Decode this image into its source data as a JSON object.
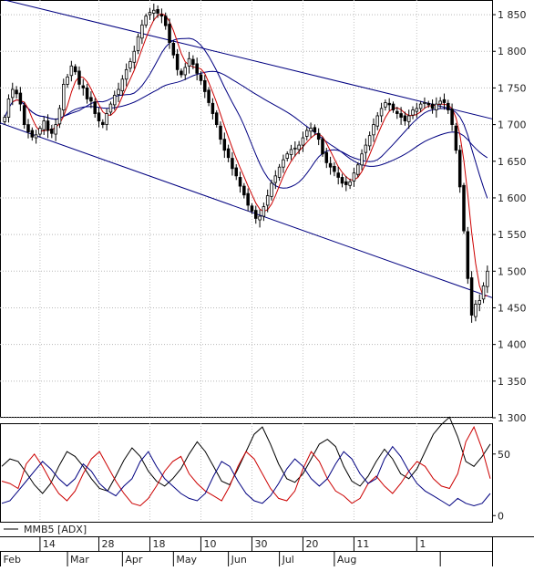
{
  "chart_data": [
    {
      "type": "candlestick",
      "title": "",
      "y_axis": {
        "position": "right",
        "ylim": [
          1300,
          1870
        ],
        "ticks": [
          1300,
          1350,
          1400,
          1450,
          1500,
          1550,
          1600,
          1650,
          1700,
          1750,
          1800,
          1850
        ],
        "tick_labels": [
          "1 300",
          "1 350",
          "1 400",
          "1 450",
          "1 500",
          "1 550",
          "1 600",
          "1 650",
          "1 700",
          "1 750",
          "1 800",
          "1 850"
        ]
      },
      "grid": "dotted",
      "candle_colors": {
        "up": "#ffffff",
        "down": "#000000",
        "outline": "#000000"
      },
      "closes": [
        1710,
        1735,
        1748,
        1742,
        1728,
        1700,
        1690,
        1683,
        1686,
        1695,
        1705,
        1692,
        1688,
        1700,
        1722,
        1755,
        1765,
        1780,
        1772,
        1755,
        1750,
        1735,
        1732,
        1715,
        1705,
        1700,
        1715,
        1728,
        1740,
        1748,
        1762,
        1775,
        1786,
        1800,
        1820,
        1836,
        1848,
        1853,
        1856,
        1852,
        1848,
        1835,
        1812,
        1795,
        1775,
        1768,
        1778,
        1790,
        1782,
        1770,
        1760,
        1745,
        1730,
        1715,
        1700,
        1680,
        1665,
        1655,
        1640,
        1630,
        1616,
        1604,
        1590,
        1582,
        1572,
        1575,
        1588,
        1603,
        1620,
        1630,
        1642,
        1652,
        1660,
        1666,
        1668,
        1672,
        1682,
        1692,
        1695,
        1690,
        1680,
        1660,
        1648,
        1642,
        1636,
        1628,
        1620,
        1618,
        1622,
        1634,
        1645,
        1660,
        1672,
        1685,
        1700,
        1712,
        1722,
        1730,
        1727,
        1720,
        1715,
        1710,
        1705,
        1712,
        1720,
        1722,
        1728,
        1730,
        1727,
        1722,
        1728,
        1732,
        1730,
        1720,
        1700,
        1665,
        1615,
        1555,
        1490,
        1440,
        1455,
        1460,
        1480,
        1500
      ],
      "dates_axis": {
        "day_labels": [
          "14",
          "28",
          "18",
          "10",
          "30",
          "20",
          "11",
          "1"
        ],
        "month_labels": [
          "Feb",
          "Mar",
          "Apr",
          "May",
          "Jun",
          "Jul",
          "Aug"
        ]
      },
      "overlays": {
        "short_ma": {
          "color": "#cc0000",
          "period": 5
        },
        "medium_ma": {
          "color": "#000080",
          "period": 15
        },
        "long_ma": {
          "color": "#000080",
          "period": 40
        },
        "trend_channel_upper": {
          "color": "#000080",
          "x": [
            0,
            121
          ],
          "y": [
            1870,
            1712
          ]
        },
        "trend_channel_lower": {
          "color": "#000080",
          "x": [
            0,
            121
          ],
          "y": [
            1700,
            1470
          ]
        }
      }
    },
    {
      "type": "line",
      "legend": "MMB5 [ADX]",
      "y_axis": {
        "position": "right",
        "ylim": [
          -5,
          75
        ],
        "ticks": [
          0,
          50
        ],
        "tick_labels": [
          "0",
          "50"
        ]
      },
      "series": [
        {
          "color": "#000000",
          "values": [
            40,
            46,
            44,
            35,
            25,
            18,
            26,
            40,
            52,
            48,
            40,
            30,
            22,
            20,
            32,
            45,
            55,
            48,
            36,
            28,
            24,
            30,
            38,
            50,
            60,
            52,
            40,
            28,
            25,
            38,
            52,
            66,
            72,
            58,
            42,
            30,
            27,
            34,
            46,
            58,
            62,
            56,
            40,
            28,
            24,
            32,
            44,
            54,
            46,
            34,
            30,
            38,
            52,
            66,
            74,
            80,
            64,
            44,
            40,
            48,
            58
          ]
        },
        {
          "color": "#cc0000",
          "values": [
            28,
            26,
            22,
            42,
            50,
            40,
            28,
            18,
            12,
            20,
            34,
            46,
            52,
            40,
            28,
            18,
            10,
            8,
            14,
            24,
            36,
            44,
            48,
            34,
            26,
            20,
            16,
            12,
            24,
            40,
            52,
            46,
            34,
            22,
            14,
            12,
            20,
            38,
            52,
            44,
            30,
            20,
            16,
            10,
            14,
            26,
            32,
            24,
            18,
            26,
            36,
            44,
            40,
            30,
            24,
            22,
            34,
            60,
            72,
            54,
            30
          ]
        },
        {
          "color": "#000080",
          "values": [
            10,
            12,
            20,
            28,
            36,
            44,
            38,
            30,
            24,
            30,
            42,
            36,
            26,
            20,
            16,
            24,
            30,
            44,
            52,
            40,
            30,
            24,
            18,
            14,
            12,
            18,
            32,
            44,
            40,
            28,
            18,
            12,
            10,
            16,
            26,
            38,
            46,
            40,
            30,
            24,
            30,
            42,
            52,
            46,
            34,
            26,
            30,
            46,
            56,
            48,
            36,
            26,
            20,
            16,
            12,
            8,
            14,
            10,
            8,
            10,
            18
          ]
        }
      ]
    }
  ]
}
